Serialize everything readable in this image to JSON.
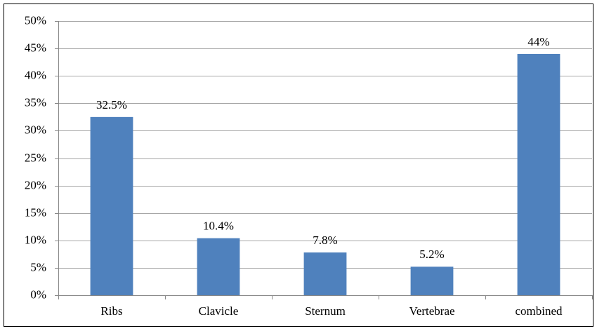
{
  "chart_data": {
    "type": "bar",
    "categories": [
      "Ribs",
      "Clavicle",
      "Sternum",
      "Vertebrae",
      "combined"
    ],
    "values": [
      32.5,
      10.4,
      7.8,
      5.2,
      44
    ],
    "value_labels": [
      "32.5%",
      "10.4%",
      "7.8%",
      "5.2%",
      "44%"
    ],
    "color": "#4f81bd",
    "ylim": [
      0,
      50
    ],
    "yticks": [
      {
        "value": 0,
        "label": "0%"
      },
      {
        "value": 5,
        "label": "5%"
      },
      {
        "value": 10,
        "label": "10%"
      },
      {
        "value": 15,
        "label": "15%"
      },
      {
        "value": 20,
        "label": "20%"
      },
      {
        "value": 25,
        "label": "25%"
      },
      {
        "value": 30,
        "label": "30%"
      },
      {
        "value": 35,
        "label": "35%"
      },
      {
        "value": 40,
        "label": "40%"
      },
      {
        "value": 45,
        "label": "45%"
      },
      {
        "value": 50,
        "label": "50%"
      }
    ],
    "grid": true
  }
}
